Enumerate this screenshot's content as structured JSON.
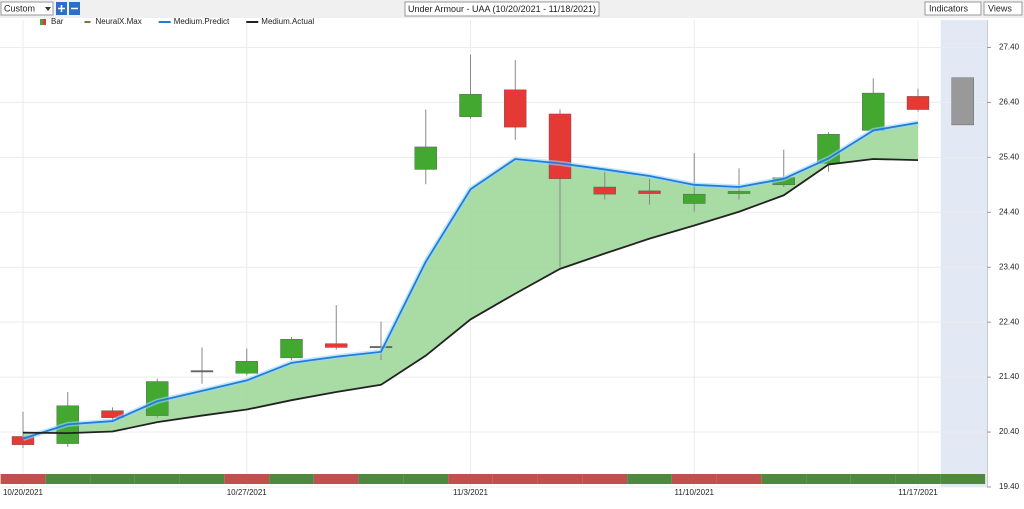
{
  "toolbar": {
    "preset": "Custom",
    "indicators": "Indicators",
    "views": "Views"
  },
  "chart_data": {
    "type": "candlestick",
    "title": "Under Armour - UAA (10/20/2021 - 11/18/2021)",
    "categories": [
      "10/20/2021",
      null,
      null,
      null,
      null,
      "10/27/2021",
      null,
      null,
      null,
      null,
      "11/3/2021",
      null,
      null,
      null,
      null,
      "11/10/2021",
      null,
      null,
      null,
      null,
      "11/17/2021",
      null
    ],
    "ylim": [
      19.4,
      27.9
    ],
    "yticks": [
      {
        "value": 19.4,
        "label": "19.40"
      },
      {
        "value": 20.4,
        "label": "20.40"
      },
      {
        "value": 21.4,
        "label": "21.40"
      },
      {
        "value": 22.4,
        "label": "22.40"
      },
      {
        "value": 23.4,
        "label": "23.40"
      },
      {
        "value": 24.4,
        "label": "24.40"
      },
      {
        "value": 25.4,
        "label": "25.40"
      },
      {
        "value": 26.4,
        "label": "26.40"
      },
      {
        "value": 27.4,
        "label": "27.40"
      }
    ],
    "grid": true,
    "series": [
      {
        "name": "Bar",
        "open": [
          20.32,
          20.19,
          20.79,
          20.7,
          21.52,
          21.47,
          21.75,
          22.01,
          21.96,
          25.18,
          26.14,
          26.63,
          26.19,
          24.86,
          24.79,
          24.56,
          24.74,
          24.9,
          25.29,
          25.89,
          26.51,
          25.99
        ],
        "high": [
          20.77,
          21.13,
          20.85,
          21.37,
          21.94,
          21.92,
          22.13,
          22.71,
          22.41,
          26.27,
          27.27,
          27.17,
          26.27,
          25.14,
          25.01,
          25.48,
          25.2,
          25.54,
          25.86,
          26.84,
          26.65,
          26.85
        ],
        "low": [
          20.11,
          20.13,
          20.62,
          20.66,
          21.28,
          21.43,
          21.71,
          21.9,
          21.71,
          24.91,
          26.1,
          25.72,
          23.41,
          24.63,
          24.54,
          24.41,
          24.63,
          24.86,
          25.14,
          25.86,
          26.23,
          25.99
        ],
        "close": [
          20.17,
          20.88,
          20.66,
          21.32,
          21.52,
          21.69,
          22.09,
          21.94,
          21.96,
          25.59,
          26.55,
          25.95,
          25.01,
          24.73,
          24.74,
          24.73,
          24.78,
          25.03,
          25.82,
          26.57,
          26.27,
          26.85
        ],
        "colors": [
          "#e53935",
          "#43a82f",
          "#e53935",
          "#43a82f",
          "#666666",
          "#43a82f",
          "#43a82f",
          "#e53935",
          "#666666",
          "#43a82f",
          "#43a82f",
          "#e53935",
          "#e53935",
          "#e53935",
          "#e53935",
          "#43a82f",
          "#43a82f",
          "#43a82f",
          "#43a82f",
          "#43a82f",
          "#e53935",
          "#999999"
        ]
      },
      {
        "name": "NeuralX.Max",
        "strip_colors": [
          "#c0504d",
          "#4f8a3c",
          "#4f8a3c",
          "#4f8a3c",
          "#4f8a3c",
          "#c0504d",
          "#4f8a3c",
          "#c0504d",
          "#4f8a3c",
          "#4f8a3c",
          "#c0504d",
          "#c0504d",
          "#c0504d",
          "#c0504d",
          "#4f8a3c",
          "#c0504d",
          "#c0504d",
          "#4f8a3c",
          "#4f8a3c",
          "#4f8a3c",
          "#4f8a3c",
          "#4f8a3c"
        ]
      },
      {
        "name": "Medium.Predict",
        "color": "#1e7fd8",
        "values": [
          20.28,
          20.54,
          20.6,
          20.96,
          21.15,
          21.34,
          21.66,
          21.77,
          21.86,
          23.5,
          24.82,
          25.37,
          25.29,
          25.18,
          25.06,
          24.9,
          24.86,
          25.01,
          25.38,
          25.89,
          26.03,
          null
        ]
      },
      {
        "name": "Medium.Actual",
        "color": "#222222",
        "values": [
          20.39,
          20.38,
          20.41,
          20.58,
          20.7,
          20.81,
          20.98,
          21.13,
          21.26,
          21.79,
          22.45,
          22.92,
          23.37,
          23.65,
          23.92,
          24.16,
          24.41,
          24.71,
          25.27,
          25.37,
          25.35,
          null
        ]
      }
    ],
    "forecast_shade": "#e3e8f5",
    "spread_fill": "#9fd89a"
  }
}
